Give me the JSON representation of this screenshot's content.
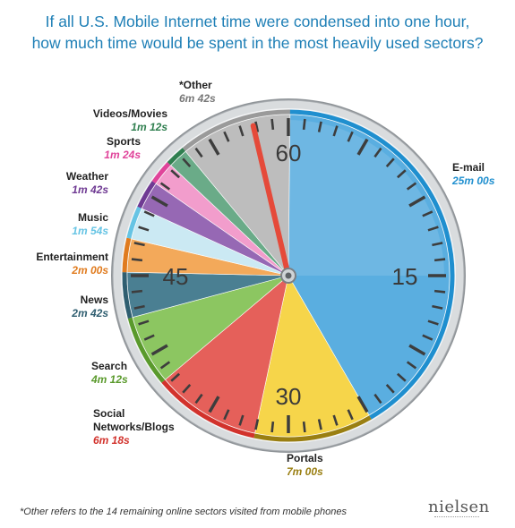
{
  "chart_data": {
    "type": "pie",
    "title_lines": [
      "If all U.S. Mobile Internet time were condensed into one hour,",
      "how much time  would be spent in the most heavily used sectors?"
    ],
    "unit": "minutes",
    "slices": [
      {
        "name": "E-mail",
        "time": "25m 00s",
        "minutes": 25.0,
        "color": "#5aaee0"
      },
      {
        "name": "Portals",
        "time": "7m 00s",
        "minutes": 7.0,
        "color": "#f6d54a"
      },
      {
        "name": "Social Networks/Blogs",
        "time": "6m 18s",
        "minutes": 6.3,
        "color": "#e5605a"
      },
      {
        "name": "Search",
        "time": "4m 12s",
        "minutes": 4.2,
        "color": "#8cc661"
      },
      {
        "name": "News",
        "time": "2m 42s",
        "minutes": 2.7,
        "color": "#4a7f92"
      },
      {
        "name": "Entertainment",
        "time": "2m 00s",
        "minutes": 2.0,
        "color": "#f3a95a"
      },
      {
        "name": "Music",
        "time": "1m 54s",
        "minutes": 1.9,
        "color": "#cbe9f3"
      },
      {
        "name": "Weather",
        "time": "1m 42s",
        "minutes": 1.7,
        "color": "#9668b4"
      },
      {
        "name": "Sports",
        "time": "1m 24s",
        "minutes": 1.4,
        "color": "#f29dcc"
      },
      {
        "name": "Videos/Movies",
        "time": "1m 12s",
        "minutes": 1.2,
        "color": "#6aab88"
      },
      {
        "name": "*Other",
        "time": "6m 42s",
        "minutes": 6.7,
        "color": "#bdbdbd"
      }
    ],
    "dial_numbers": [
      "60",
      "15",
      "30",
      "45"
    ]
  },
  "labels_text_colors": {
    "E-mail": "#1f8fcf",
    "Portals": "#9a7f12",
    "Social Networks/Blogs": "#d2322c",
    "Search": "#5a9a2c",
    "News": "#2f5e70",
    "Entertainment": "#e07b1e",
    "Music": "#66c4e4",
    "Weather": "#6f3a93",
    "Sports": "#e0449a",
    "Videos/Movies": "#2f7f4f",
    "*Other": "#777777"
  },
  "footnote": "*Other refers to the 14 remaining online sectors visited from mobile phones",
  "brand": "nielsen"
}
